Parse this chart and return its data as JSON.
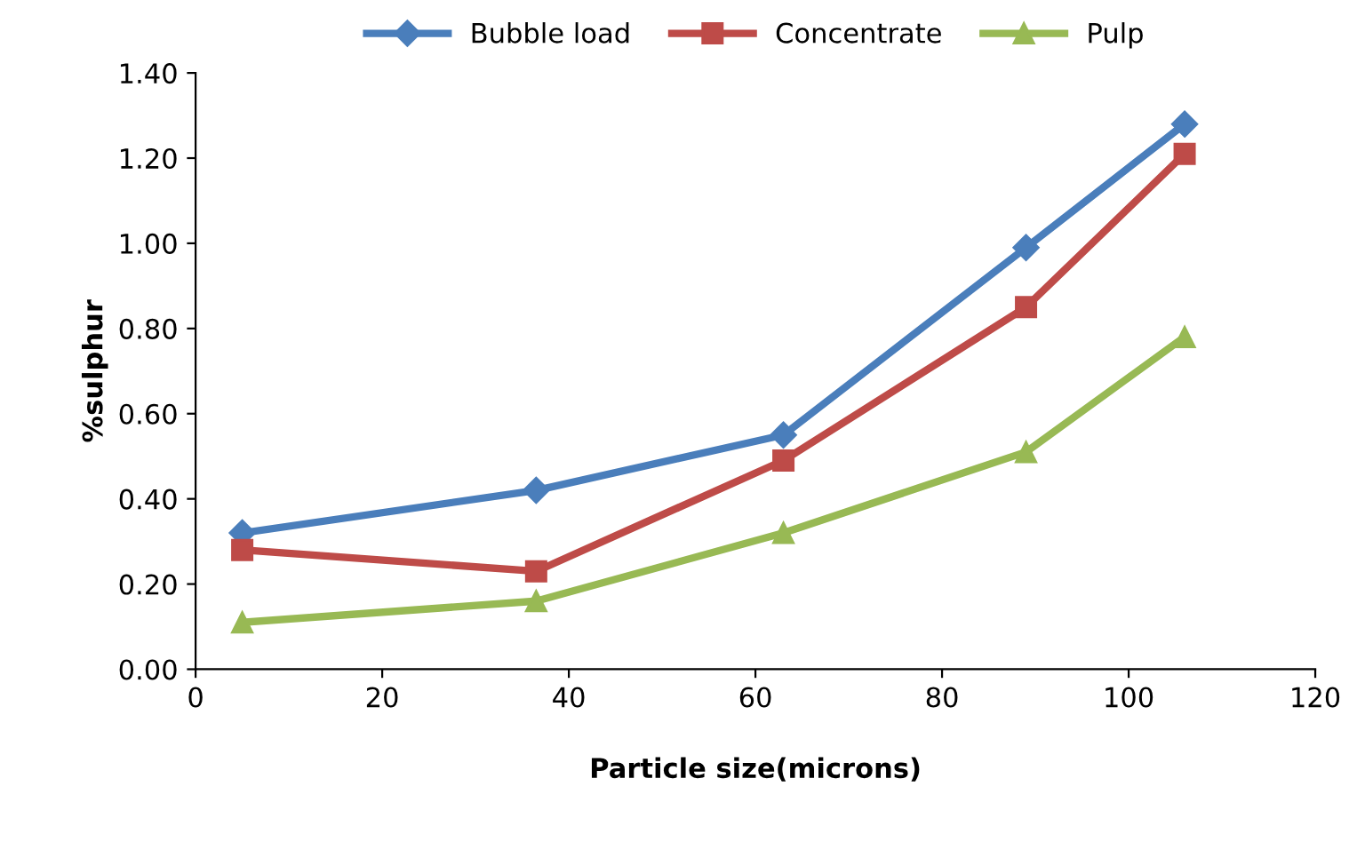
{
  "chart_data": {
    "type": "line",
    "xlabel": "Particle size(microns)",
    "ylabel": "%sulphur",
    "x": [
      5,
      36.5,
      63,
      89,
      106
    ],
    "series": [
      {
        "name": "Bubble load",
        "color": "#4a7ebb",
        "marker": "diamond",
        "values": [
          0.32,
          0.42,
          0.55,
          0.99,
          1.28
        ]
      },
      {
        "name": "Concentrate",
        "color": "#be4b48",
        "marker": "square",
        "values": [
          0.28,
          0.23,
          0.49,
          0.85,
          1.21
        ]
      },
      {
        "name": "Pulp",
        "color": "#98b954",
        "marker": "triangle",
        "values": [
          0.11,
          0.16,
          0.32,
          0.51,
          0.78
        ]
      }
    ],
    "xlim": [
      0,
      120
    ],
    "xticks": [
      0,
      20,
      40,
      60,
      80,
      100,
      120
    ],
    "ylim": [
      0,
      1.4
    ],
    "yticks": [
      {
        "value": 0,
        "label": "0.00"
      },
      {
        "value": 0.2,
        "label": "0.20"
      },
      {
        "value": 0.4,
        "label": "0.40"
      },
      {
        "value": 0.6,
        "label": "0.60"
      },
      {
        "value": 0.8,
        "label": "0.80"
      },
      {
        "value": 1.0,
        "label": "1.00"
      },
      {
        "value": 1.2,
        "label": "1.20"
      },
      {
        "value": 1.4,
        "label": "1.40"
      }
    ],
    "grid": false,
    "legend": "top"
  }
}
